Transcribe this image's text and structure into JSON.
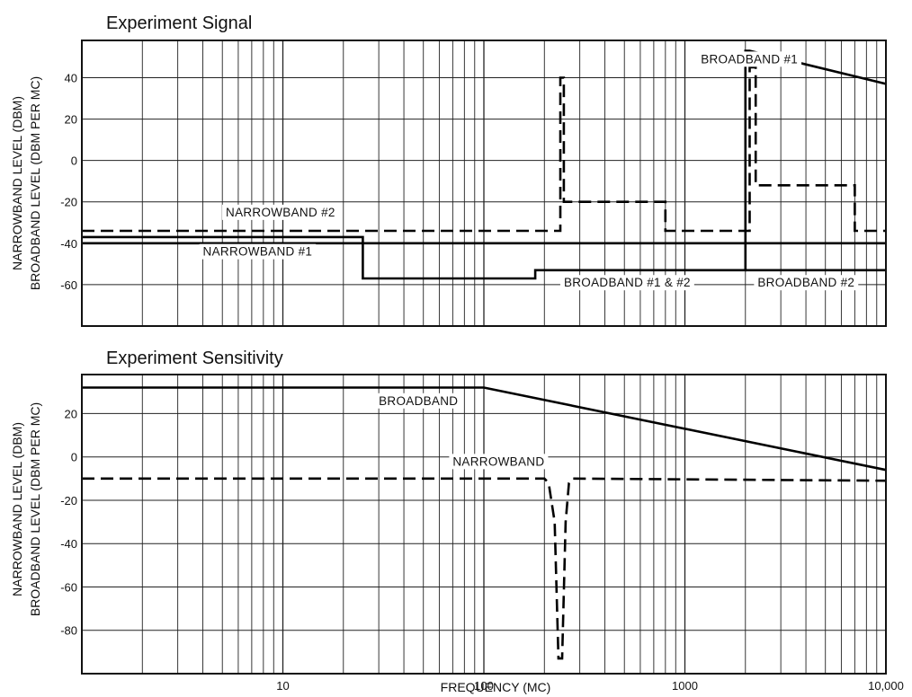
{
  "figure": {
    "xlabel": "FREQUENCY (MC)"
  },
  "chart_data": [
    {
      "type": "line",
      "title": "Experiment Signal",
      "ylabel_line1": "NARROWBAND LEVEL (DBM)",
      "ylabel_line2": "BROADBAND LEVEL (DBM PER MC)",
      "xscale": "log",
      "xlim": [
        1,
        10000
      ],
      "ylim": [
        -80,
        58
      ],
      "yticks": [
        40,
        20,
        0,
        -20,
        -40,
        -60
      ],
      "grid": true,
      "annotations": [
        {
          "text": "BROADBAND #1",
          "x": 1200,
          "y": 47
        },
        {
          "text": "NARROWBAND #2",
          "x": 5.2,
          "y": -27
        },
        {
          "text": "NARROWBAND #1",
          "x": 4.0,
          "y": -46
        },
        {
          "text": "BROADBAND #1 & #2",
          "x": 250,
          "y": -61
        },
        {
          "text": "BROADBAND #2",
          "x": 2300,
          "y": -61
        }
      ],
      "series": [
        {
          "name": "NARROWBAND #2",
          "style": "dashed",
          "points": [
            [
              1,
              -34
            ],
            [
              240,
              -34
            ],
            [
              240,
              40
            ],
            [
              250,
              40
            ],
            [
              250,
              -20
            ],
            [
              800,
              -20
            ],
            [
              800,
              -34
            ],
            [
              2100,
              -34
            ],
            [
              2100,
              45
            ],
            [
              2250,
              45
            ],
            [
              2250,
              -12
            ],
            [
              7000,
              -12
            ],
            [
              7000,
              -34
            ],
            [
              10000,
              -34
            ]
          ]
        },
        {
          "name": "NARROWBAND #1",
          "style": "solid",
          "points": [
            [
              1,
              -40
            ],
            [
              10000,
              -40
            ]
          ]
        },
        {
          "name": "BROADBAND #1 & #2",
          "style": "solid",
          "points": [
            [
              1,
              -37
            ],
            [
              25,
              -37
            ],
            [
              25,
              -57
            ],
            [
              180,
              -57
            ],
            [
              180,
              -53
            ],
            [
              2000,
              -53
            ],
            [
              2000,
              53
            ],
            [
              2100,
              53
            ],
            [
              10000,
              37
            ]
          ]
        },
        {
          "name": "BROADBAND #2",
          "style": "solid",
          "points": [
            [
              2000,
              -53
            ],
            [
              10000,
              -53
            ]
          ]
        }
      ]
    },
    {
      "type": "line",
      "title": "Experiment Sensitivity",
      "ylabel_line1": "NARROWBAND LEVEL (DBM)",
      "ylabel_line2": "BROADBAND LEVEL (DBM PER MC)",
      "xscale": "log",
      "xlim": [
        1,
        10000
      ],
      "ylim": [
        -100,
        38
      ],
      "yticks": [
        20,
        0,
        -20,
        -40,
        -60,
        -80
      ],
      "xticks": [
        10,
        100,
        1000,
        10000
      ],
      "xticklabels": [
        "10",
        "100",
        "1000",
        "10,000"
      ],
      "grid": true,
      "annotations": [
        {
          "text": "BROADBAND",
          "x": 30,
          "y": 24
        },
        {
          "text": "NARROWBAND",
          "x": 70,
          "y": -4
        }
      ],
      "series": [
        {
          "name": "BROADBAND",
          "style": "solid",
          "points": [
            [
              1,
              32
            ],
            [
              100,
              32
            ],
            [
              10000,
              -6
            ]
          ]
        },
        {
          "name": "NARROWBAND",
          "style": "dashed",
          "points": [
            [
              1,
              -10
            ],
            [
              200,
              -10
            ],
            [
              210,
              -12
            ],
            [
              225,
              -30
            ],
            [
              235,
              -93
            ],
            [
              245,
              -93
            ],
            [
              255,
              -30
            ],
            [
              265,
              -12
            ],
            [
              275,
              -10
            ],
            [
              10000,
              -11
            ]
          ]
        }
      ]
    }
  ]
}
